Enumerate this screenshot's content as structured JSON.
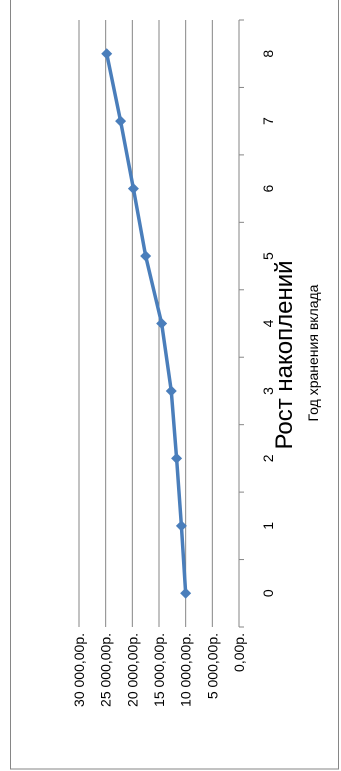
{
  "chart_data": {
    "type": "line",
    "title": "Рост накоплений",
    "xlabel": "Год хранения вклада",
    "ylabel": "",
    "categories": [
      "0",
      "1",
      "2",
      "3",
      "4",
      "5",
      "6",
      "7",
      "8"
    ],
    "series": [
      {
        "name": "",
        "values": [
          10000,
          10800,
          11700,
          12700,
          14500,
          17500,
          19800,
          22200,
          24800
        ]
      }
    ],
    "y_tick_labels": [
      "0,00р.",
      "5 000,00р.",
      "10 000,00р.",
      "15 000,00р.",
      "20 000,00р.",
      "25 000,00р.",
      "30 000,00р."
    ],
    "ylim": [
      0,
      30000
    ],
    "grid": true,
    "legend": "none",
    "orientation": "rotated 90° counter-clockwise",
    "colors": {
      "series": "#4a7ebb",
      "grid": "#868686",
      "axis": "#868686",
      "border": "#868686"
    }
  }
}
